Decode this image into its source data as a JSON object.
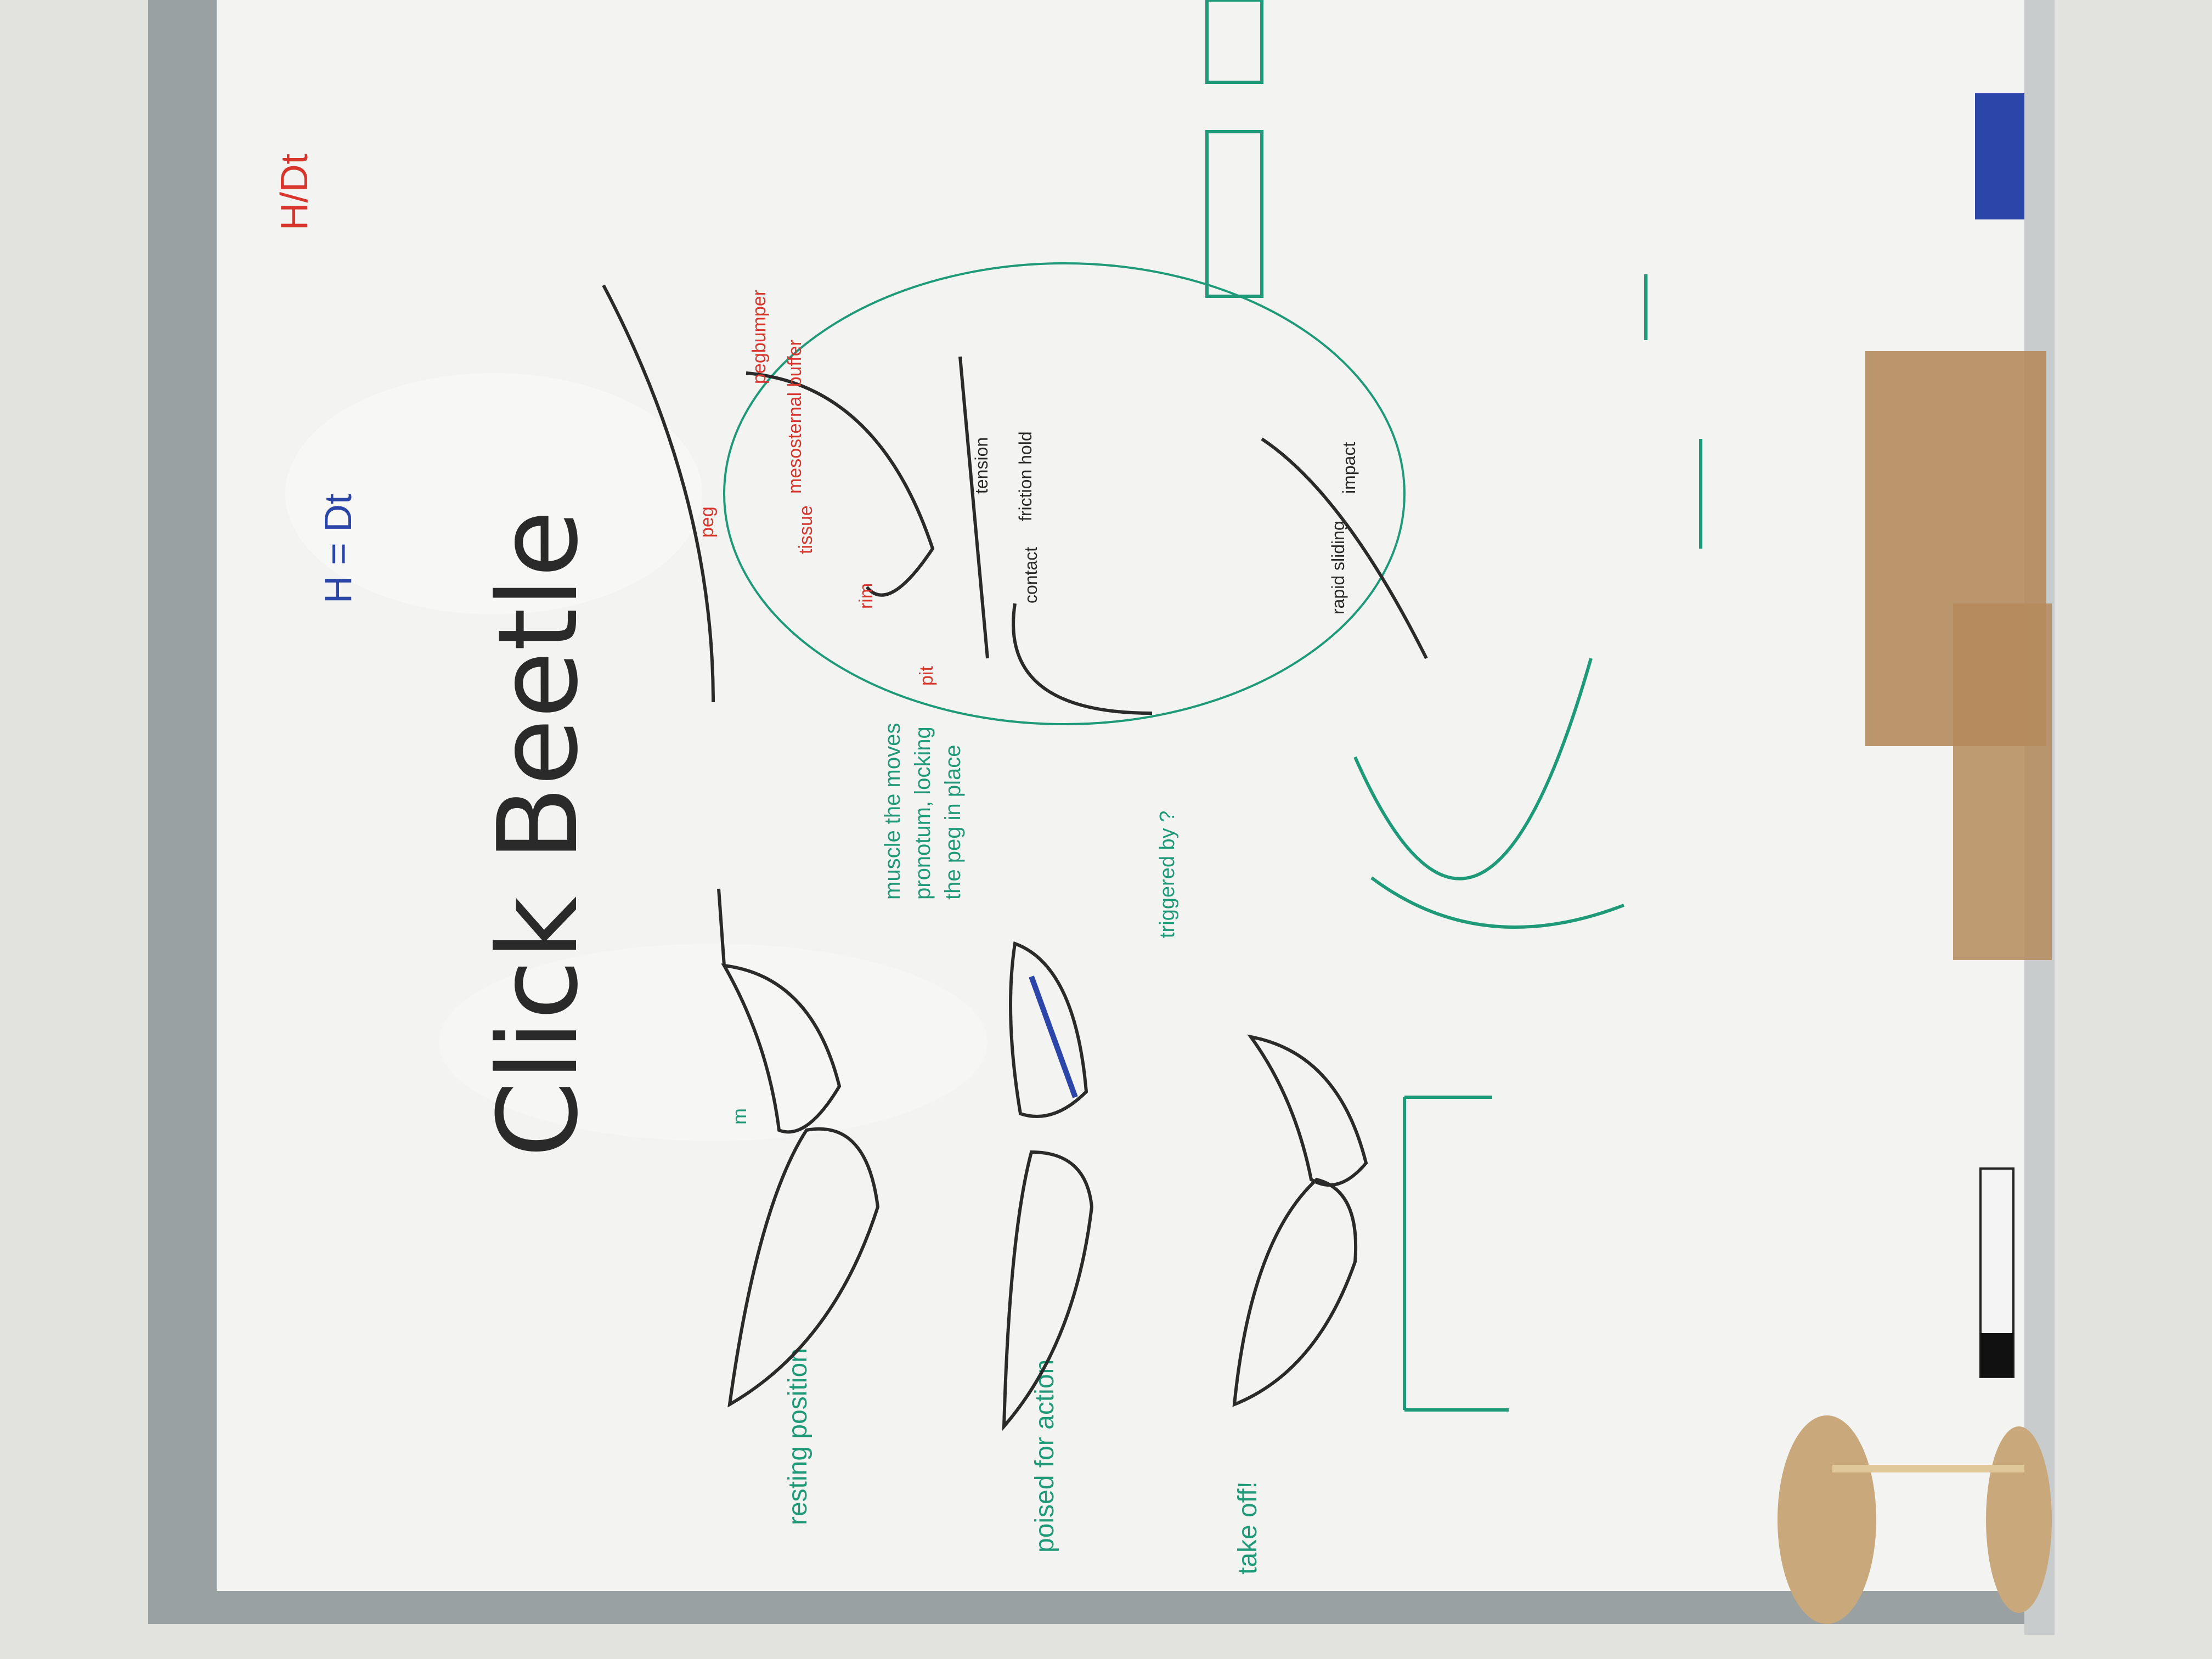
{
  "title": "Click Beetle",
  "stages": {
    "resting": "resting position",
    "poised": "poised for action",
    "takeoff": "take off!"
  },
  "notes": {
    "muscle": [
      "muscle the moves",
      "pronotum, locking",
      "the peg in place"
    ],
    "triggered": "triggered by ?",
    "m_label": "m"
  },
  "mechanism_labels": {
    "peg": "peg",
    "pegbumper": "pegbumper",
    "mesosternal_buffer": "mesosternal buffer",
    "pit": "pit",
    "rim": "rim",
    "tissue": "tissue",
    "tension": "tension",
    "friction_hold": "friction hold",
    "contact": "contact",
    "rapid_sliding": "rapid sliding",
    "impact": "impact"
  },
  "equations": {
    "left_eq": "H = Dt",
    "top_frac": "H/Dt"
  },
  "colors": {
    "board": "#f3f3f1",
    "frame": "#9aa1a3",
    "ink_black": "#2a2a2a",
    "ink_green": "#1f9a78",
    "ink_red": "#d8352c",
    "ink_blue": "#2b46a8"
  }
}
